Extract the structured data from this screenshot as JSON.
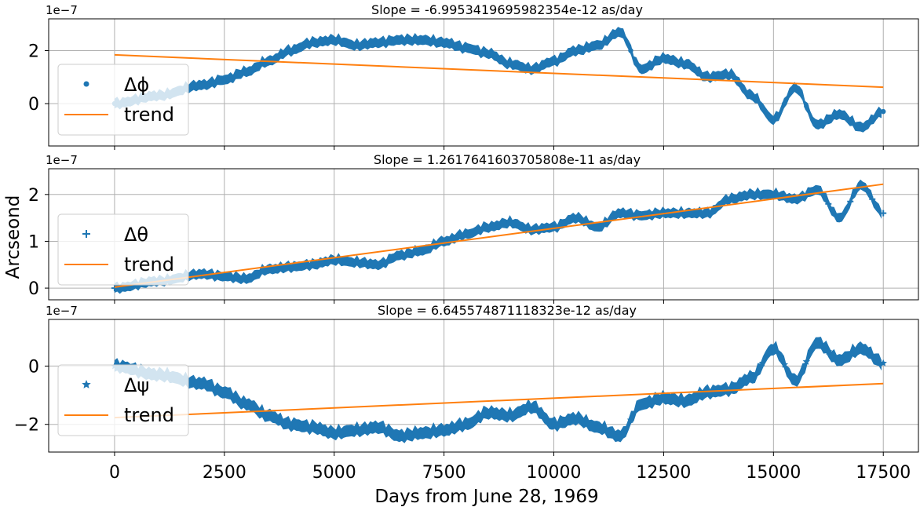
{
  "figure": {
    "ylabel": "Arcseond",
    "xlabel": "Days from June 28, 1969",
    "xlim": [
      -1500,
      18300
    ],
    "xticks": [
      0,
      2500,
      5000,
      7500,
      10000,
      12500,
      15000,
      17500
    ],
    "xtick_labels": [
      "0",
      "2500",
      "5000",
      "7500",
      "10000",
      "12500",
      "15000",
      "17500"
    ]
  },
  "chart_data": [
    {
      "type": "scatter",
      "title": "Slope = -6.9953419695982354e-12 as/day",
      "offset_label": "1e−7",
      "yscale": 1e-07,
      "ylim": [
        -1.6,
        3.2
      ],
      "yticks": [
        0,
        2
      ],
      "ytick_labels": [
        "0",
        "2"
      ],
      "marker": "circle",
      "color": "#1f77b4",
      "band_halfwidth": 0.18,
      "series": [
        {
          "name": "Δϕ",
          "x": [
            0,
            1000,
            2000,
            2500,
            3000,
            3500,
            4000,
            4500,
            5000,
            5500,
            6000,
            6500,
            7000,
            7500,
            8000,
            8500,
            9000,
            9500,
            10000,
            10500,
            11000,
            11500,
            12000,
            12500,
            13000,
            13500,
            14000,
            14500,
            15000,
            15500,
            16000,
            16500,
            17000,
            17500
          ],
          "y": [
            0.0,
            0.3,
            0.7,
            0.9,
            1.2,
            1.6,
            2.0,
            2.3,
            2.4,
            2.2,
            2.3,
            2.4,
            2.4,
            2.3,
            2.1,
            1.9,
            1.5,
            1.3,
            1.6,
            2.0,
            2.2,
            2.7,
            1.3,
            1.7,
            1.5,
            1.0,
            1.1,
            0.3,
            -0.6,
            0.6,
            -0.8,
            -0.4,
            -0.9,
            -0.3
          ]
        },
        {
          "name": "trend",
          "x": [
            0,
            17500
          ],
          "y": [
            1.84,
            0.62
          ],
          "color": "#ff7f0e"
        }
      ]
    },
    {
      "type": "scatter",
      "title": "Slope = 1.2617641603705808e-11 as/day",
      "offset_label": "1e−7",
      "yscale": 1e-07,
      "ylim": [
        -0.25,
        2.55
      ],
      "yticks": [
        0,
        1,
        2
      ],
      "ytick_labels": [
        "0",
        "1",
        "2"
      ],
      "marker": "plus",
      "color": "#1f77b4",
      "band_halfwidth": 0.1,
      "series": [
        {
          "name": "Δθ",
          "x": [
            0,
            1000,
            2000,
            2500,
            3000,
            3500,
            4000,
            4500,
            5000,
            5500,
            6000,
            6500,
            7000,
            7500,
            8000,
            8500,
            9000,
            9500,
            10000,
            10500,
            11000,
            11500,
            12000,
            12500,
            13000,
            13500,
            14000,
            14500,
            15000,
            15500,
            16000,
            16500,
            17000,
            17500
          ],
          "y": [
            0.0,
            0.15,
            0.3,
            0.25,
            0.2,
            0.4,
            0.45,
            0.5,
            0.6,
            0.55,
            0.5,
            0.7,
            0.8,
            1.0,
            1.15,
            1.3,
            1.4,
            1.25,
            1.3,
            1.5,
            1.3,
            1.6,
            1.55,
            1.6,
            1.6,
            1.6,
            1.9,
            2.0,
            2.0,
            1.9,
            2.1,
            1.5,
            2.2,
            1.6
          ]
        },
        {
          "name": "trend",
          "x": [
            0,
            17500
          ],
          "y": [
            0.02,
            2.22
          ],
          "color": "#ff7f0e"
        }
      ]
    },
    {
      "type": "scatter",
      "title": "Slope = 6.645574871118323e-12 as/day",
      "offset_label": "1e−7",
      "yscale": 1e-07,
      "ylim": [
        -2.95,
        1.6
      ],
      "yticks": [
        -2,
        0
      ],
      "ytick_labels": [
        "−2",
        "0"
      ],
      "marker": "star",
      "color": "#1f77b4",
      "band_halfwidth": 0.2,
      "series": [
        {
          "name": "Δψ",
          "x": [
            0,
            1000,
            2000,
            2500,
            3000,
            3500,
            4000,
            4500,
            5000,
            5500,
            6000,
            6500,
            7000,
            7500,
            8000,
            8500,
            9000,
            9500,
            10000,
            10500,
            11000,
            11500,
            12000,
            12500,
            13000,
            13500,
            14000,
            14500,
            15000,
            15500,
            16000,
            16500,
            17000,
            17500
          ],
          "y": [
            0.0,
            -0.3,
            -0.6,
            -0.9,
            -1.3,
            -1.7,
            -2.0,
            -2.1,
            -2.3,
            -2.2,
            -2.1,
            -2.4,
            -2.3,
            -2.2,
            -2.0,
            -1.6,
            -1.7,
            -1.4,
            -2.0,
            -1.8,
            -2.1,
            -2.4,
            -1.3,
            -1.1,
            -1.2,
            -0.9,
            -0.8,
            -0.4,
            0.6,
            -0.5,
            0.8,
            0.2,
            0.6,
            0.1
          ]
        },
        {
          "name": "trend",
          "x": [
            0,
            17500
          ],
          "y": [
            -1.77,
            -0.6
          ],
          "color": "#ff7f0e"
        }
      ]
    }
  ]
}
